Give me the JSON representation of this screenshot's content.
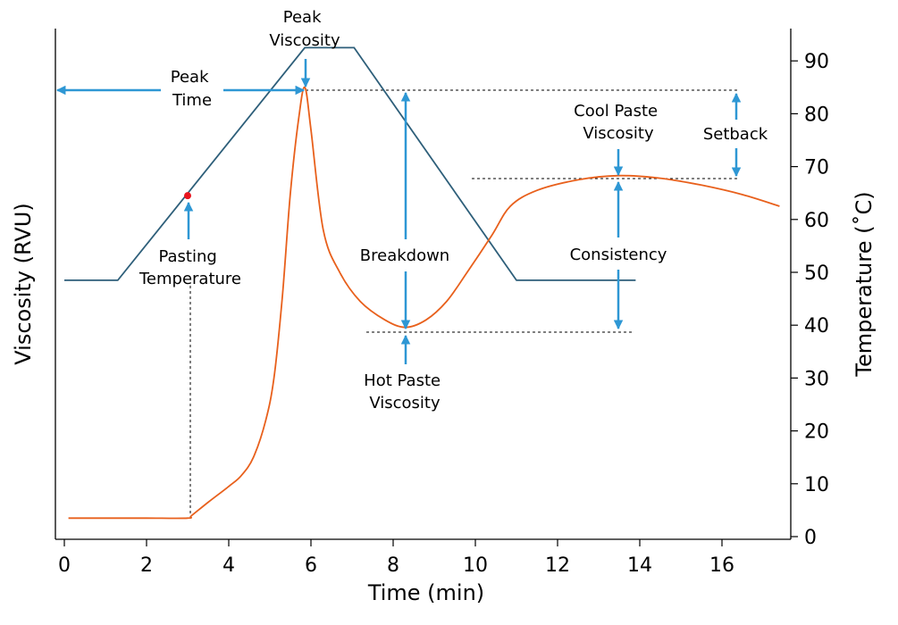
{
  "chart_data": {
    "type": "line",
    "xlabel": "Time (min)",
    "ylabel_left": "Viscosity (RVU)",
    "ylabel_right": "Temperature (˚C)",
    "xlim": [
      0,
      18
    ],
    "ylim_right": [
      0,
      95
    ],
    "x_ticks": [
      0,
      2,
      4,
      6,
      8,
      10,
      12,
      14,
      16
    ],
    "y_right_ticks": [
      0,
      10,
      20,
      30,
      40,
      50,
      60,
      70,
      80,
      90
    ],
    "grid": false,
    "series": [
      {
        "role": "temperature",
        "color": "#2e5f7a",
        "x": [
          0,
          1.3,
          5.85,
          7.05,
          11.0,
          13.9
        ],
        "y": [
          48.5,
          48.5,
          92.5,
          92.5,
          48.5,
          48.5
        ]
      },
      {
        "role": "viscosity",
        "color": "#e8601c",
        "x": [
          0.1,
          1,
          2,
          3,
          3.1,
          3.5,
          4,
          4.3,
          4.6,
          4.9,
          5.1,
          5.3,
          5.5,
          5.7,
          5.85,
          6.0,
          6.3,
          6.7,
          7.2,
          7.8,
          8.3,
          8.8,
          9.3,
          9.8,
          10.4,
          10.85,
          11.5,
          12.5,
          13.5,
          14.5,
          15.5,
          16.5,
          17.4
        ],
        "y": [
          3.5,
          3.5,
          3.5,
          3.5,
          4.0,
          6.5,
          9.5,
          11.5,
          15,
          22,
          30,
          45,
          65,
          79,
          85,
          77,
          58,
          50,
          44.5,
          41,
          39.6,
          41,
          44.5,
          50,
          57,
          62.5,
          65.5,
          67.5,
          68.3,
          67.8,
          66.5,
          64.7,
          62.5
        ]
      }
    ],
    "pasting_point": {
      "x": 3.0,
      "temperature": 64.5,
      "color": "#e8141e"
    },
    "annotations": {
      "peak_viscosity": [
        "Peak",
        "Viscosity"
      ],
      "peak_time": [
        "Peak",
        "Time"
      ],
      "pasting_temperature": [
        "Pasting",
        "Temperature"
      ],
      "breakdown": "Breakdown",
      "hot_paste_viscosity": [
        "Hot Paste",
        "Viscosity"
      ],
      "cool_paste_viscosity": [
        "Cool Paste",
        "Viscosity"
      ],
      "setback": "Setback",
      "consistency": "Consistency"
    },
    "arrow_color": "#2e97d4"
  }
}
